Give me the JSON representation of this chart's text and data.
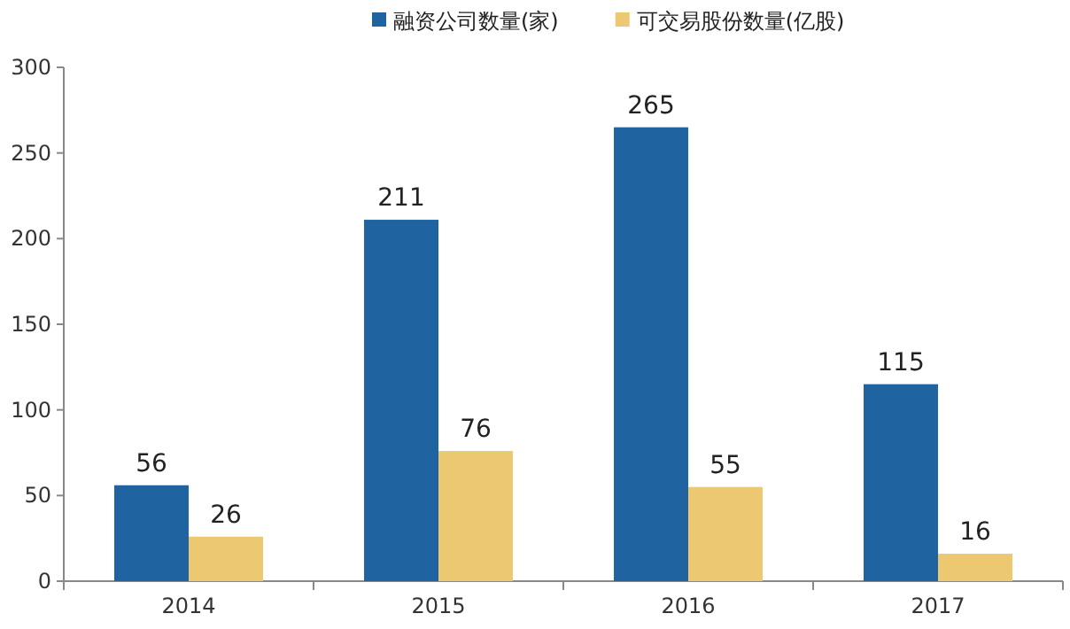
{
  "chart_data": {
    "type": "bar",
    "categories": [
      "2014",
      "2015",
      "2016",
      "2017"
    ],
    "series": [
      {
        "name": "融资公司数量(家)",
        "color": "#1f63a0",
        "values": [
          56,
          211,
          265,
          115
        ]
      },
      {
        "name": "可交易股份数量(亿股)",
        "color": "#ecc970",
        "values": [
          26,
          76,
          55,
          16
        ]
      }
    ],
    "ylim": [
      0,
      300
    ],
    "yticks": [
      0,
      50,
      100,
      150,
      200,
      250,
      300
    ],
    "data_labels": true,
    "legend": "top"
  }
}
